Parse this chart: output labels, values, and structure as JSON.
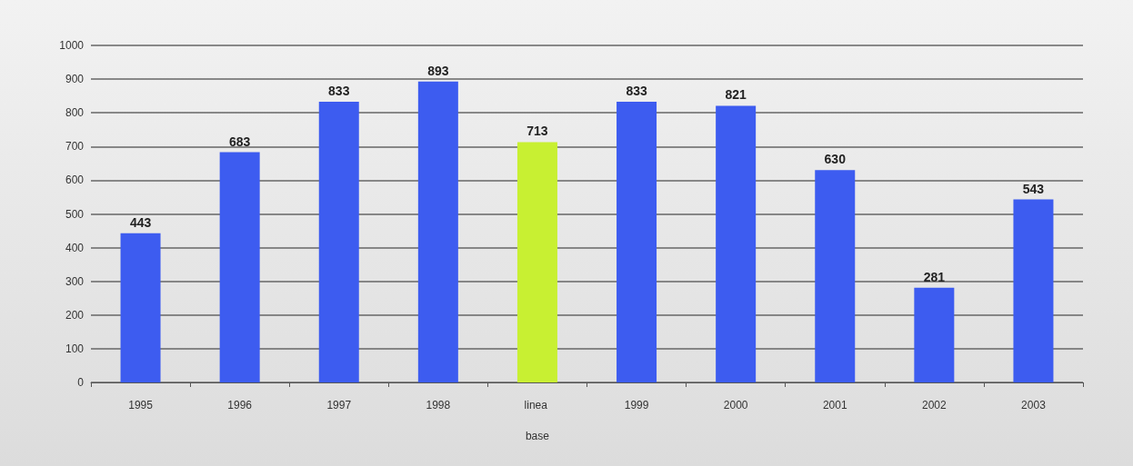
{
  "chart_data": {
    "type": "bar",
    "categories": [
      "1995",
      "1996",
      "1997",
      "1998",
      "linea base",
      "1999",
      "2000",
      "2001",
      "2002",
      "2003"
    ],
    "values": [
      443,
      683,
      833,
      893,
      713,
      833,
      821,
      630,
      281,
      543
    ],
    "colors": [
      "#3d5cf0",
      "#3d5cf0",
      "#3d5cf0",
      "#3d5cf0",
      "#c8f032",
      "#3d5cf0",
      "#3d5cf0",
      "#3d5cf0",
      "#3d5cf0",
      "#3d5cf0"
    ],
    "ylim": [
      0,
      1000
    ],
    "yticks": [
      0,
      100,
      200,
      300,
      400,
      500,
      600,
      700,
      800,
      900,
      1000
    ],
    "grid": "y",
    "data_labels": true
  }
}
